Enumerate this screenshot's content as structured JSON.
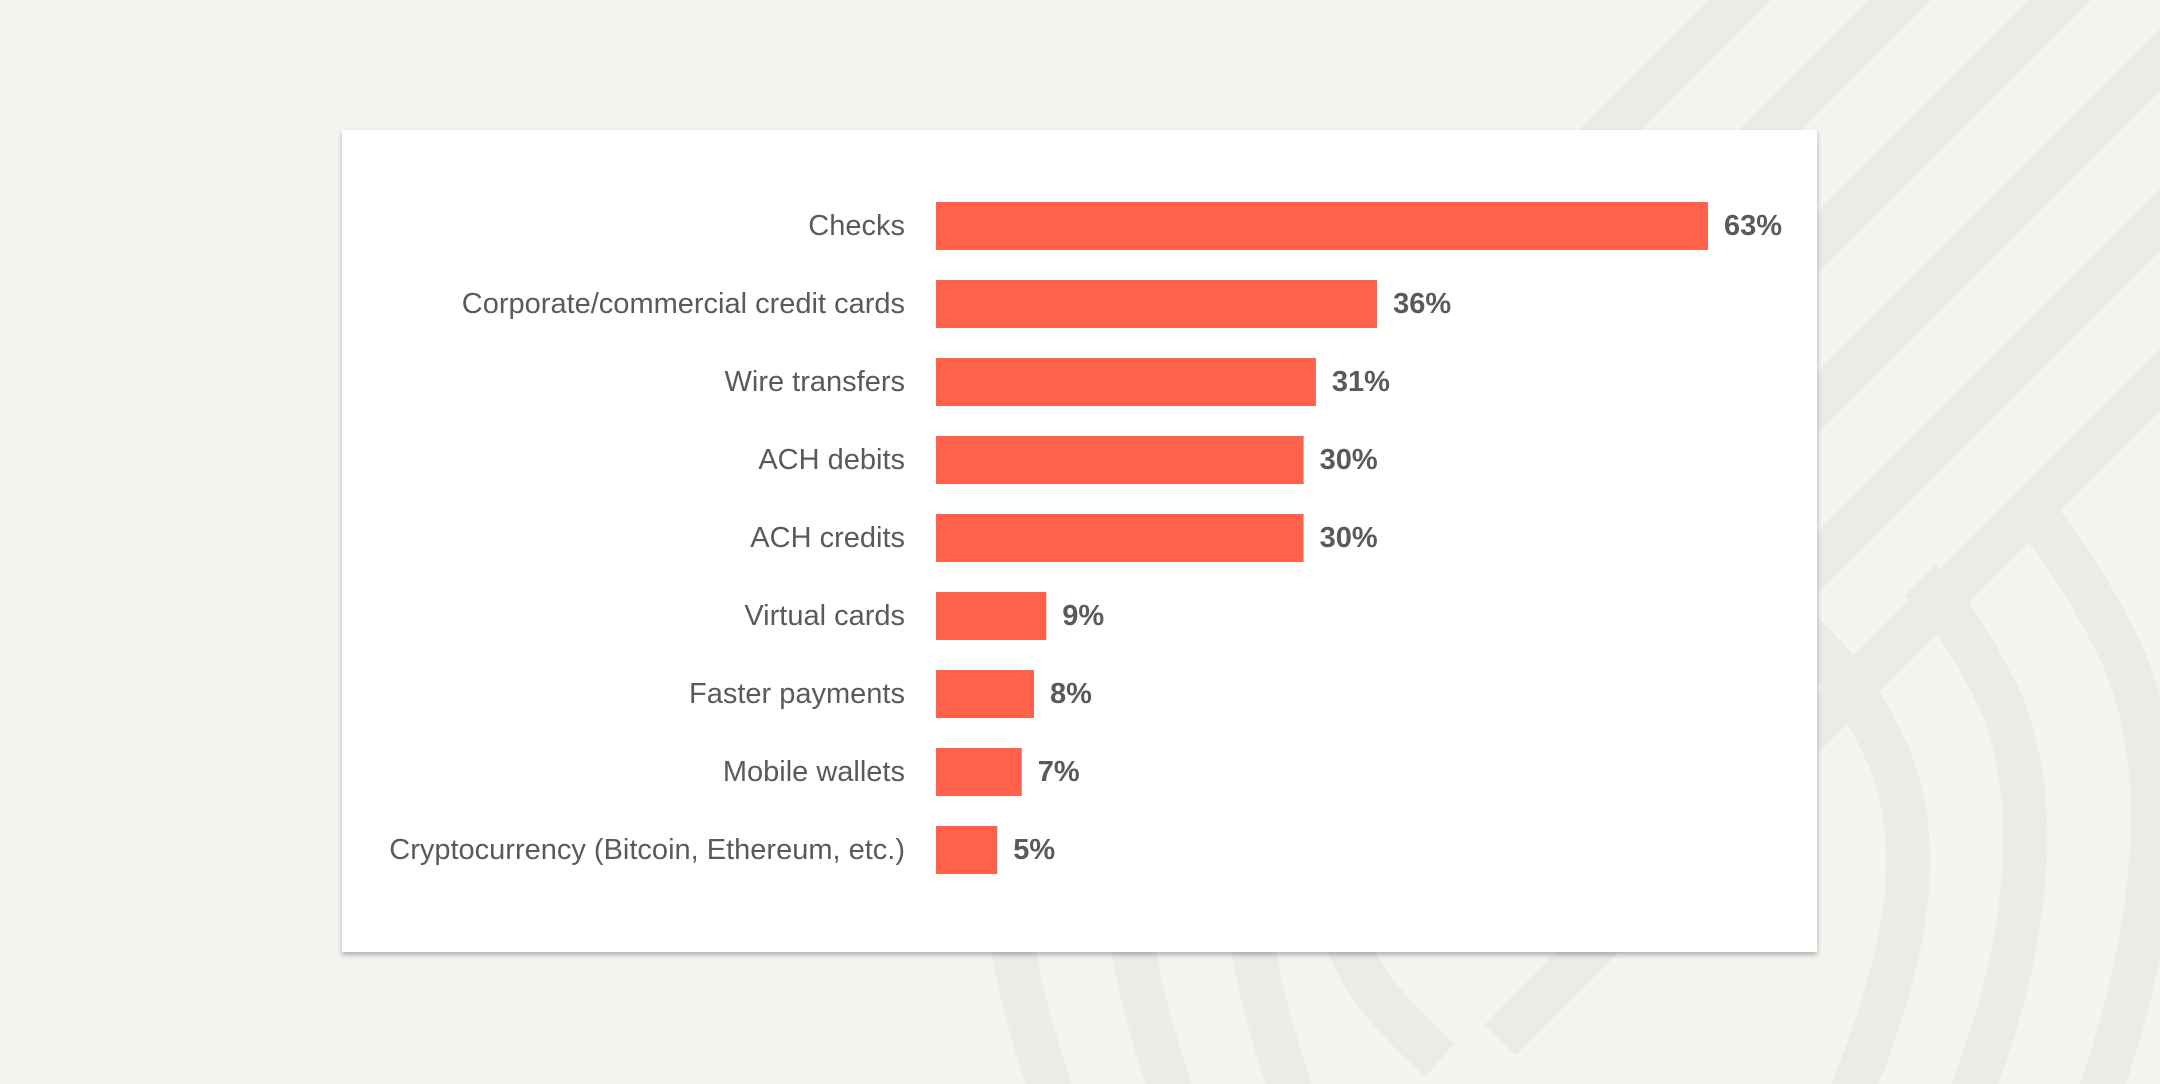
{
  "colors": {
    "background": "#f5f4f1",
    "pattern": "#ecebe6",
    "card": "#ffffff",
    "bar": "#ff614a",
    "text": "#5a5a5a"
  },
  "chart_data": {
    "type": "bar",
    "orientation": "horizontal",
    "categories": [
      "Checks",
      "Corporate/commercial credit cards",
      "Wire transfers",
      "ACH debits",
      "ACH credits",
      "Virtual cards",
      "Faster payments",
      "Mobile wallets",
      "Cryptocurrency (Bitcoin, Ethereum, etc.)"
    ],
    "values": [
      63,
      36,
      31,
      30,
      30,
      9,
      8,
      7,
      5
    ],
    "value_labels": [
      "63%",
      "36%",
      "31%",
      "30%",
      "30%",
      "9%",
      "8%",
      "7%",
      "5%"
    ],
    "title": "",
    "xlabel": "",
    "ylabel": "",
    "xlim": [
      0,
      63
    ],
    "grid": false,
    "legend": "none"
  }
}
